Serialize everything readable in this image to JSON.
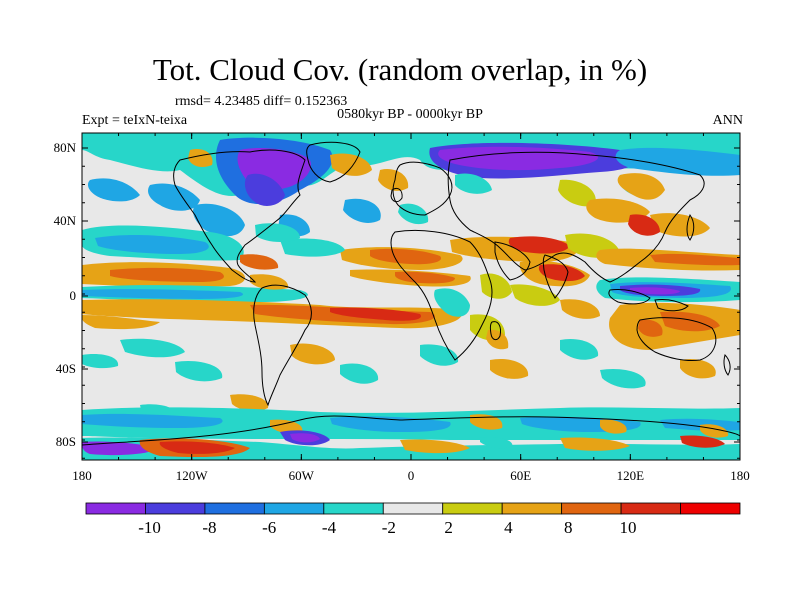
{
  "title": "Tot. Cloud Cov. (random overlap, in %)",
  "stats": "rmsd= 4.23485 diff= 0.152363",
  "subtitle": "0580kyr BP - 0000kyr BP",
  "experiment": "Expt = teIxN-teixa",
  "season": "ANN",
  "axes": {
    "x_ticks": [
      "180",
      "120W",
      "60W",
      "0",
      "60E",
      "120E",
      "180"
    ],
    "y_ticks": [
      "80N",
      "40N",
      "0",
      "40S",
      "80S"
    ]
  },
  "colorbar": {
    "labels": [
      "-10",
      "-8",
      "-6",
      "-4",
      "-2",
      "2",
      "4",
      "8",
      "10"
    ],
    "colors": [
      "#8a2be2",
      "#4b3ddd",
      "#1f6fe0",
      "#1fa6e4",
      "#27d6c9",
      "#e8e8e8",
      "#c9cc11",
      "#e6a316",
      "#e06510",
      "#d82a14",
      "#ee0000"
    ]
  },
  "palette": {
    "land_outline": "#000000",
    "neutral": "#e8e8e8"
  }
}
